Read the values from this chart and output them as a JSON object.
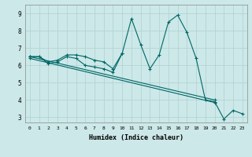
{
  "xlabel": "Humidex (Indice chaleur)",
  "ylabel": "",
  "background_color": "#cce8e8",
  "line_color": "#006666",
  "grid_color": "#b0d0d0",
  "xlim": [
    -0.5,
    23.5
  ],
  "ylim": [
    2.7,
    9.5
  ],
  "xticks": [
    0,
    1,
    2,
    3,
    4,
    5,
    6,
    7,
    8,
    9,
    10,
    11,
    12,
    13,
    14,
    15,
    16,
    17,
    18,
    19,
    20,
    21,
    22,
    23
  ],
  "yticks": [
    3,
    4,
    5,
    6,
    7,
    8,
    9
  ],
  "series1": [
    6.5,
    6.5,
    6.2,
    6.3,
    6.6,
    6.6,
    6.5,
    6.3,
    6.2,
    5.8,
    6.7,
    8.7,
    7.2,
    5.8,
    6.6,
    8.5,
    8.9,
    7.9,
    6.4,
    4.0,
    3.9,
    2.9,
    3.4,
    3.2
  ],
  "series2_x": [
    0,
    1,
    2,
    3,
    4,
    5,
    6,
    7,
    8,
    9,
    10
  ],
  "series2_y": [
    6.5,
    6.5,
    6.1,
    6.2,
    6.5,
    6.4,
    6.0,
    5.9,
    5.8,
    5.6,
    6.7
  ],
  "trend1_x": [
    0,
    20
  ],
  "trend1_y": [
    6.5,
    3.9
  ],
  "trend2_x": [
    0,
    20
  ],
  "trend2_y": [
    6.5,
    3.9
  ],
  "figsize": [
    3.2,
    2.0
  ],
  "dpi": 100
}
